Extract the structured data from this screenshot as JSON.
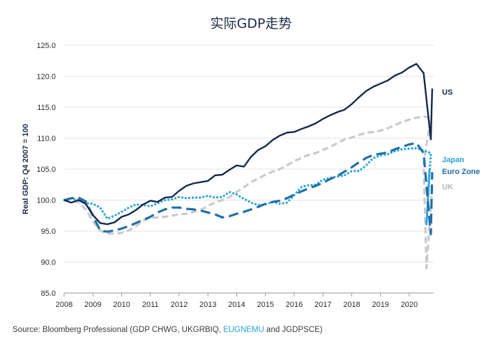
{
  "chart_data": {
    "type": "line",
    "title": "实际GDP走势",
    "xlabel": "",
    "ylabel": "Real GDP: Q4 2007 = 100",
    "ylim": [
      85,
      125
    ],
    "yticks": [
      "125.0",
      "120.0",
      "115.0",
      "110.0",
      "105.0",
      "100.0",
      "95.0",
      "90.0",
      "85.0"
    ],
    "xticks": [
      "2008",
      "2009",
      "2010",
      "2011",
      "2012",
      "2013",
      "2014",
      "2015",
      "2016",
      "2017",
      "2018",
      "2019",
      "2020"
    ],
    "x": [
      2008.0,
      2008.25,
      2008.5,
      2008.75,
      2009.0,
      2009.25,
      2009.5,
      2009.75,
      2010.0,
      2010.25,
      2010.5,
      2010.75,
      2011.0,
      2011.25,
      2011.5,
      2011.75,
      2012.0,
      2012.25,
      2012.5,
      2012.75,
      2013.0,
      2013.25,
      2013.5,
      2013.75,
      2014.0,
      2014.25,
      2014.5,
      2014.75,
      2015.0,
      2015.25,
      2015.5,
      2015.75,
      2016.0,
      2016.25,
      2016.5,
      2016.75,
      2017.0,
      2017.25,
      2017.5,
      2017.75,
      2018.0,
      2018.25,
      2018.5,
      2018.75,
      2019.0,
      2019.25,
      2019.5,
      2019.75,
      2020.0,
      2020.25,
      2020.5,
      2020.75
    ],
    "grid": true,
    "series": [
      {
        "name": "US",
        "color": "#14284b",
        "style": "solid",
        "values": [
          100.0,
          99.6,
          100.0,
          99.4,
          97.6,
          96.3,
          96.1,
          96.4,
          97.3,
          97.7,
          98.4,
          99.3,
          99.9,
          99.7,
          100.4,
          100.5,
          101.5,
          102.3,
          102.7,
          102.9,
          103.1,
          104.0,
          104.1,
          104.9,
          105.6,
          105.4,
          107.0,
          108.1,
          108.7,
          109.7,
          110.4,
          110.9,
          111.0,
          111.5,
          111.9,
          112.4,
          113.1,
          113.7,
          114.2,
          114.6,
          115.5,
          116.6,
          117.6,
          118.3,
          118.8,
          119.3,
          120.1,
          120.6,
          121.4,
          122.0,
          120.5,
          109.8
        ],
        "extra_points": [
          [
            2020.8,
            118.0
          ]
        ]
      },
      {
        "name": "Japan",
        "color": "#27a3dd",
        "style": "dotted",
        "values": [
          100.0,
          100.3,
          100.0,
          99.5,
          99.4,
          98.8,
          97.0,
          97.5,
          98.1,
          98.8,
          99.3,
          99.2,
          99.0,
          99.5,
          100.0,
          100.1,
          100.5,
          100.3,
          100.4,
          100.4,
          100.7,
          100.4,
          100.5,
          101.3,
          100.9,
          100.2,
          99.6,
          99.2,
          99.3,
          99.7,
          99.4,
          99.6,
          100.8,
          102.1,
          102.4,
          102.5,
          103.3,
          103.6,
          103.8,
          104.0,
          104.7,
          104.7,
          105.6,
          106.8,
          107.2,
          107.4,
          107.9,
          108.2,
          108.3,
          108.4,
          108.0,
          107.6
        ],
        "extra_points": [
          [
            2020.6,
            96.0
          ],
          [
            2020.7,
            105.0
          ]
        ]
      },
      {
        "name": "Euro Zone",
        "color": "#1f6fa8",
        "style": "dashed",
        "values": [
          100.0,
          100.3,
          100.4,
          99.8,
          97.5,
          95.1,
          94.9,
          95.1,
          95.4,
          95.8,
          96.3,
          96.8,
          97.3,
          98.0,
          98.5,
          98.8,
          98.8,
          98.6,
          98.5,
          98.3,
          98.0,
          97.7,
          97.2,
          97.4,
          97.8,
          98.1,
          98.5,
          98.9,
          99.4,
          99.7,
          99.9,
          100.3,
          100.9,
          101.4,
          101.9,
          102.3,
          102.8,
          103.4,
          103.9,
          104.6,
          105.3,
          106.1,
          106.8,
          107.3,
          107.5,
          107.7,
          108.2,
          108.6,
          109.0,
          109.2,
          107.6,
          94.5
        ],
        "extra_points": [
          [
            2020.8,
            104.5
          ]
        ]
      },
      {
        "name": "UK",
        "color": "#c9cacc",
        "style": "dashed",
        "values": [
          100.0,
          100.1,
          99.6,
          98.5,
          96.6,
          95.1,
          94.6,
          94.6,
          94.7,
          95.1,
          95.8,
          96.7,
          97.1,
          97.2,
          97.3,
          97.5,
          97.7,
          97.8,
          98.1,
          98.4,
          99.1,
          99.6,
          100.0,
          100.5,
          101.3,
          102.1,
          102.9,
          103.5,
          104.1,
          104.6,
          105.0,
          105.6,
          106.3,
          106.8,
          107.3,
          107.6,
          108.1,
          108.6,
          109.2,
          109.8,
          110.1,
          110.5,
          110.9,
          111.0,
          111.2,
          111.6,
          112.1,
          112.6,
          113.0,
          113.3,
          113.5,
          113.2
        ],
        "extra_points": [
          [
            2020.5,
            106.0
          ],
          [
            2020.6,
            89.0
          ],
          [
            2020.8,
            102.0
          ]
        ]
      }
    ]
  },
  "source": {
    "prefix": "Source: Bloomberg Professional (GDP CHWG, UKGRBIQ, ",
    "highlight": "EUGNEMU",
    "suffix": " and JGDPSCE)"
  }
}
